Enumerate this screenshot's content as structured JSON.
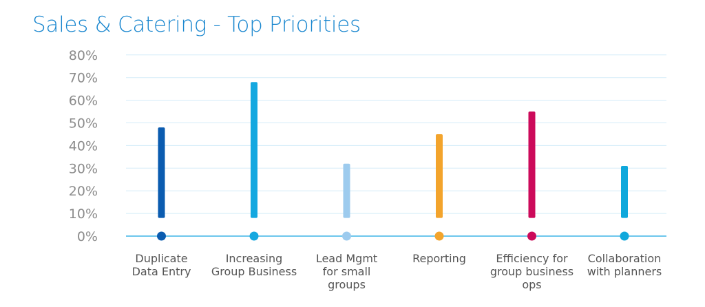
{
  "chart_data": {
    "type": "bar",
    "title": "Sales & Catering - Top Priorities",
    "categories": [
      "Duplicate\nData Entry",
      "Increasing\nGroup Business",
      "Lead Mgmt\nfor small\ngroups",
      "Reporting",
      "Efficiency for\ngroup business\nops",
      "Collaboration\nwith planners"
    ],
    "values": [
      48,
      68,
      32,
      45,
      55,
      31
    ],
    "colors": [
      "#0b5cb0",
      "#14a8e0",
      "#9dcbee",
      "#f3a42c",
      "#cc0a5a",
      "#0fa8dc"
    ],
    "ylim": [
      0,
      80
    ],
    "yticks": [
      "0%",
      "10%",
      "20%",
      "30%",
      "40%",
      "50%",
      "60%",
      "70%",
      "80%"
    ],
    "grid": true,
    "xlabel": "",
    "ylabel": ""
  }
}
